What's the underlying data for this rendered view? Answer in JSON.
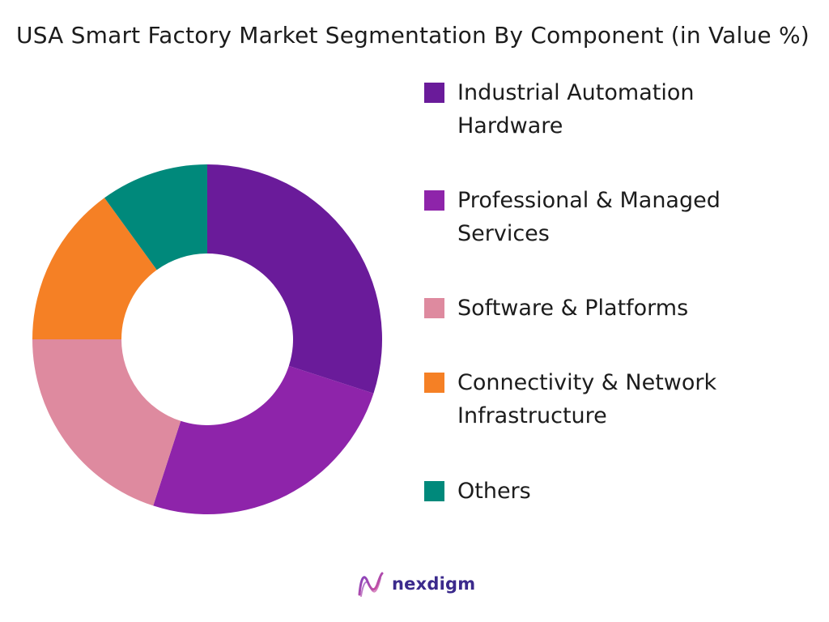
{
  "chart_data": {
    "type": "pie",
    "title": "USA Smart Factory Market Segmentation By Component (in Value %)",
    "series": [
      {
        "name": "Industrial Automation Hardware",
        "value": 30,
        "color": "#6a1b9a"
      },
      {
        "name": "Professional & Managed Services",
        "value": 25,
        "color": "#8e24aa"
      },
      {
        "name": "Software & Platforms",
        "value": 20,
        "color": "#de8a9f"
      },
      {
        "name": "Connectivity & Network Infrastructure",
        "value": 15,
        "color": "#f58025"
      },
      {
        "name": "Others",
        "value": 10,
        "color": "#00897b"
      }
    ],
    "legend_position": "right",
    "donut": true
  },
  "brand": {
    "name": "nexdigm",
    "icon": "nexdigm-logo-icon"
  }
}
